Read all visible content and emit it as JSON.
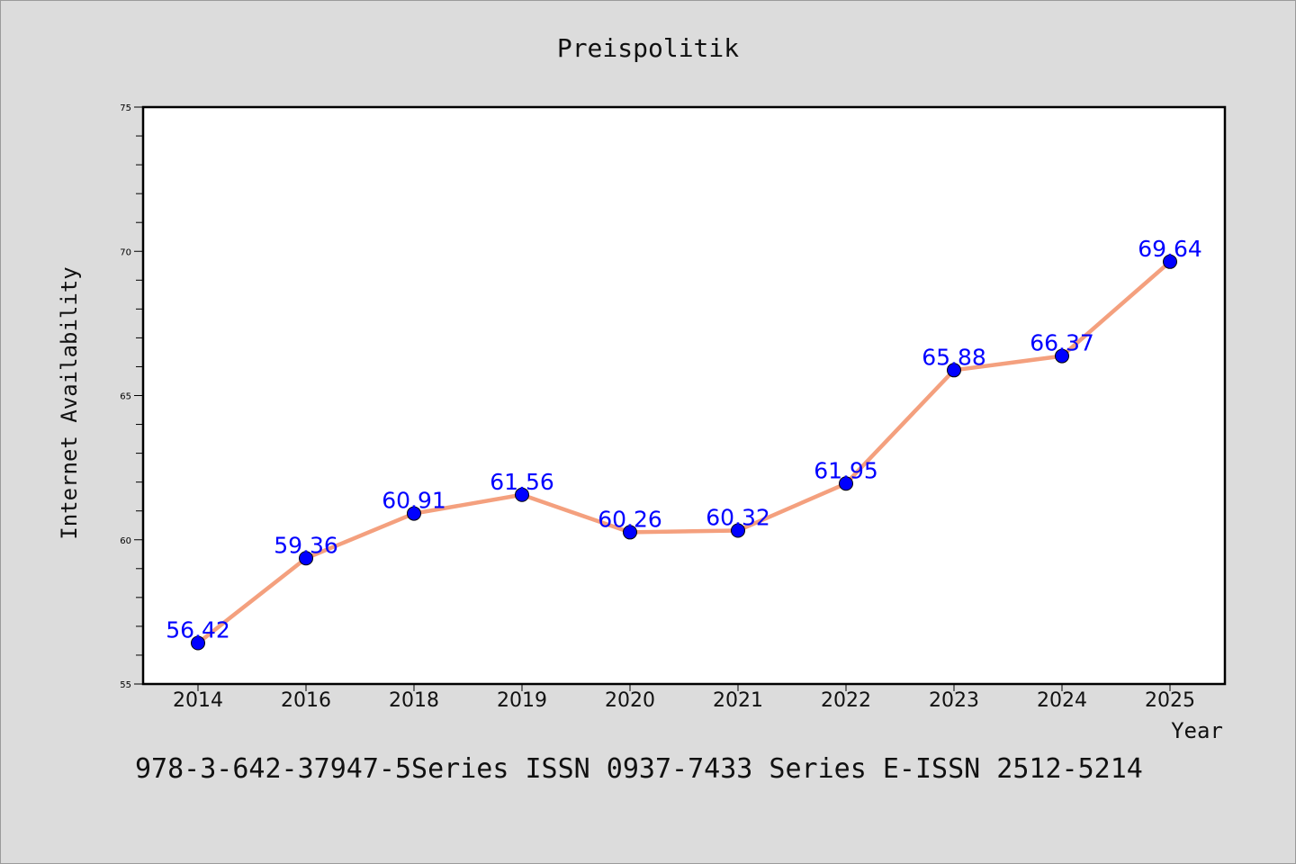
{
  "chart_data": {
    "type": "line",
    "title": "Preispolitik",
    "xlabel": "Year",
    "ylabel": "Internet Availability",
    "categories": [
      "2014",
      "2016",
      "2018",
      "2019",
      "2020",
      "2021",
      "2022",
      "2023",
      "2024",
      "2025"
    ],
    "series": [
      {
        "values": [
          56.42,
          59.36,
          60.91,
          61.56,
          60.26,
          60.32,
          61.95,
          65.88,
          66.37,
          69.64
        ],
        "data_labels": [
          "56.42",
          "59.36",
          "60.91",
          "61.56",
          "60.26",
          "60.32",
          "61.95",
          "65.88",
          "66.37",
          "69.64"
        ],
        "line_color": "#f4a07e",
        "marker_color": "#0000ff"
      }
    ],
    "ylim": [
      55,
      75
    ],
    "yticks": [
      "55",
      "60",
      "65",
      "70",
      "75"
    ],
    "grid": false,
    "legend": "none"
  },
  "footer": {
    "text": "978-3-642-37947-5Series ISSN 0937-7433 Series E-ISSN 2512-5214"
  }
}
